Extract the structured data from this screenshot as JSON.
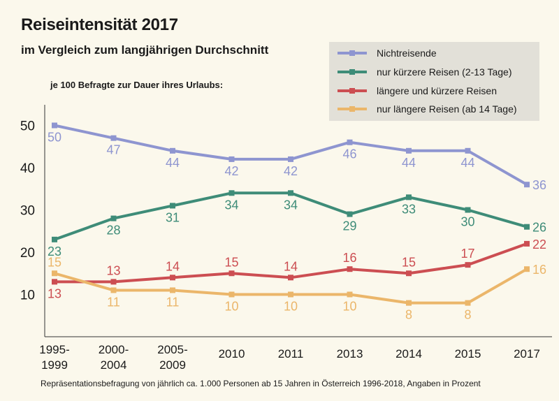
{
  "title": "Reiseintensität 2017",
  "subtitle": "im Vergleich zum langjährigen Durchschnitt",
  "source": "Repräsentationsbefragung von jährlich ca. 1.000 Personen ab 15 Jahren in Österreich 1996-2018, Angaben in Prozent",
  "chart_data": {
    "type": "line",
    "title": "Reiseintensität 2017",
    "ylabel": "je 100 Befragte zur Dauer ihres Urlaubs:",
    "xlabel": "",
    "categories": [
      "1995-1999",
      "2000-2004",
      "2005-2009",
      "2010",
      "2011",
      "2013",
      "2014",
      "2015",
      "2017"
    ],
    "ylim": [
      0,
      55
    ],
    "yticks": [
      10,
      20,
      30,
      40,
      50
    ],
    "grid": false,
    "legend_position": "top-right",
    "series": [
      {
        "name": "Nichtreisende",
        "color": "#8e95d0",
        "values": [
          50,
          47,
          44,
          42,
          42,
          46,
          44,
          44,
          36
        ],
        "label_positions": [
          "below",
          "below",
          "below",
          "below",
          "below",
          "below",
          "below",
          "below",
          "right"
        ]
      },
      {
        "name": "nur kürzere Reisen (2-13 Tage)",
        "color": "#3e8c78",
        "values": [
          23,
          28,
          31,
          34,
          34,
          29,
          33,
          30,
          26
        ],
        "label_positions": [
          "below",
          "below",
          "below",
          "below",
          "below",
          "below",
          "below",
          "below",
          "right"
        ]
      },
      {
        "name": "längere und kürzere Reisen",
        "color": "#cc4e52",
        "values": [
          13,
          13,
          14,
          15,
          14,
          16,
          15,
          17,
          22
        ],
        "label_positions": [
          "below",
          "above",
          "above",
          "above",
          "above",
          "above",
          "above",
          "above",
          "right"
        ]
      },
      {
        "name": "nur längere Reisen (ab 14 Tage)",
        "color": "#ebb66a",
        "values": [
          15,
          11,
          11,
          10,
          10,
          10,
          8,
          8,
          16
        ],
        "label_positions": [
          "above",
          "below",
          "below",
          "below",
          "below",
          "below",
          "below",
          "below",
          "right"
        ]
      }
    ]
  }
}
